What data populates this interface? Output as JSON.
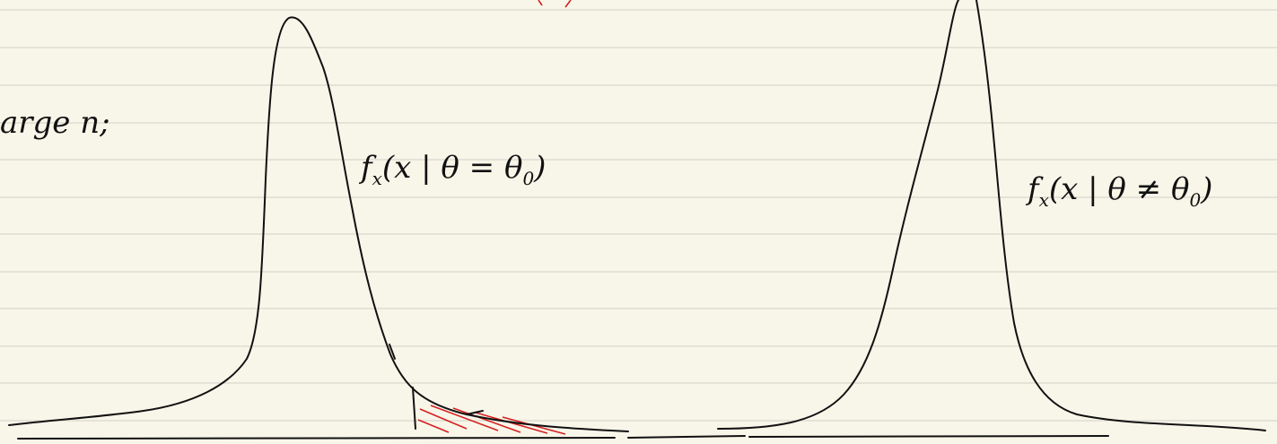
{
  "note": {
    "fragment": "arge n;",
    "annotations": [
      {
        "function": "f",
        "subscript": "x",
        "argument": "(x | θ = θ",
        "parameter_subscript": "0",
        "closing": ")"
      },
      {
        "function": "f",
        "subscript": "x",
        "argument": "(x | θ ≠ θ",
        "parameter_subscript": "0",
        "closing": ")"
      }
    ]
  }
}
